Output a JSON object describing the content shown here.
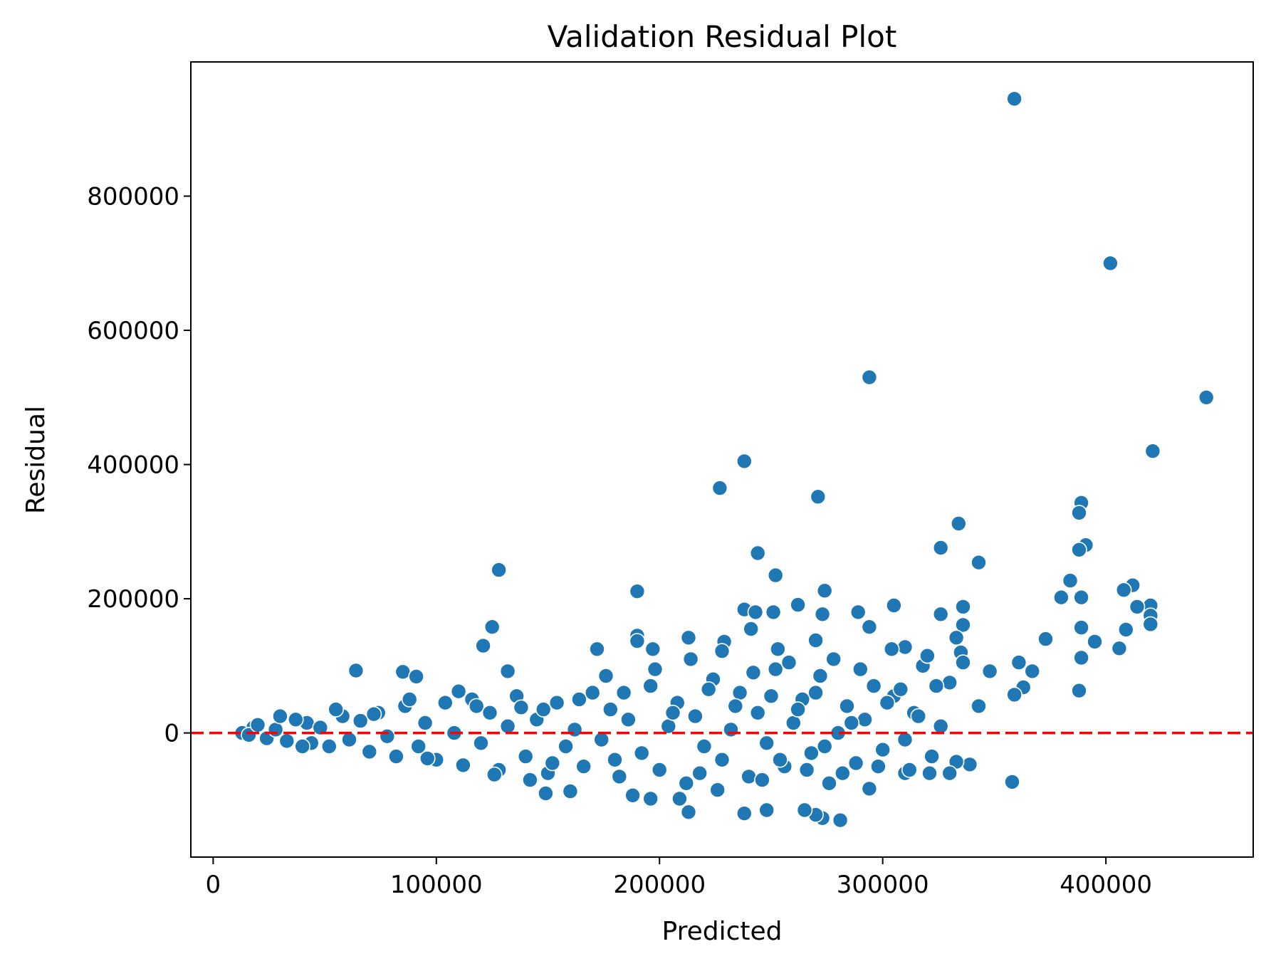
{
  "chart_data": {
    "type": "scatter",
    "title": "Validation Residual Plot",
    "xlabel": "Predicted",
    "ylabel": "Residual",
    "xlim": [
      -10000,
      466000
    ],
    "ylim": [
      -185000,
      1000000
    ],
    "xticks": [
      0,
      100000,
      200000,
      300000,
      400000
    ],
    "xtick_labels": [
      "0",
      "100000",
      "200000",
      "300000",
      "400000"
    ],
    "yticks": [
      0,
      200000,
      400000,
      600000,
      800000
    ],
    "ytick_labels": [
      "0",
      "200000",
      "400000",
      "600000",
      "800000"
    ],
    "grid": false,
    "reference_line": {
      "y": 0,
      "style": "dashed",
      "color": "#ff0000"
    },
    "point_color": "#1f77b4",
    "points": [
      [
        359000,
        945000
      ],
      [
        402000,
        700000
      ],
      [
        294000,
        530000
      ],
      [
        445000,
        500000
      ],
      [
        421000,
        420000
      ],
      [
        238000,
        405000
      ],
      [
        227000,
        365000
      ],
      [
        271000,
        352000
      ],
      [
        389000,
        343000
      ],
      [
        388000,
        328000
      ],
      [
        334000,
        312000
      ],
      [
        391000,
        280000
      ],
      [
        326000,
        276000
      ],
      [
        388000,
        273000
      ],
      [
        244000,
        268000
      ],
      [
        343000,
        254000
      ],
      [
        128000,
        243000
      ],
      [
        252000,
        235000
      ],
      [
        384000,
        227000
      ],
      [
        412000,
        220000
      ],
      [
        408000,
        213000
      ],
      [
        274000,
        212000
      ],
      [
        190000,
        211000
      ],
      [
        389000,
        202000
      ],
      [
        380000,
        202000
      ],
      [
        305000,
        190000
      ],
      [
        420000,
        190000
      ],
      [
        414000,
        188000
      ],
      [
        336000,
        188000
      ],
      [
        262000,
        191000
      ],
      [
        238000,
        184000
      ],
      [
        243000,
        180000
      ],
      [
        251000,
        180000
      ],
      [
        289000,
        180000
      ],
      [
        273000,
        177000
      ],
      [
        420000,
        175000
      ],
      [
        326000,
        177000
      ],
      [
        420000,
        162000
      ],
      [
        336000,
        161000
      ],
      [
        294000,
        158000
      ],
      [
        389000,
        157000
      ],
      [
        409000,
        154000
      ],
      [
        241000,
        155000
      ],
      [
        125000,
        158000
      ],
      [
        190000,
        145000
      ],
      [
        213000,
        142000
      ],
      [
        373000,
        140000
      ],
      [
        395000,
        136000
      ],
      [
        229000,
        136000
      ],
      [
        270000,
        138000
      ],
      [
        333000,
        142000
      ],
      [
        190000,
        137000
      ],
      [
        121000,
        130000
      ],
      [
        406000,
        126000
      ],
      [
        310000,
        128000
      ],
      [
        304000,
        125000
      ],
      [
        253000,
        125000
      ],
      [
        197000,
        125000
      ],
      [
        172000,
        125000
      ],
      [
        335000,
        120000
      ],
      [
        228000,
        122000
      ],
      [
        389000,
        112000
      ],
      [
        348000,
        92000
      ],
      [
        361000,
        105000
      ],
      [
        367000,
        92000
      ],
      [
        363000,
        68000
      ],
      [
        388000,
        63000
      ],
      [
        359000,
        57000
      ],
      [
        343000,
        40000
      ],
      [
        358000,
        -73000
      ],
      [
        339000,
        -47000
      ],
      [
        333000,
        -43000
      ],
      [
        330000,
        -60000
      ],
      [
        310000,
        -60000
      ],
      [
        321000,
        -60000
      ],
      [
        294000,
        -83000
      ],
      [
        281000,
        -130000
      ],
      [
        273000,
        -127000
      ],
      [
        270000,
        -122000
      ],
      [
        265000,
        -115000
      ],
      [
        248000,
        -115000
      ],
      [
        238000,
        -120000
      ],
      [
        213000,
        -118000
      ],
      [
        209000,
        -98000
      ],
      [
        196000,
        -98000
      ],
      [
        188000,
        -93000
      ],
      [
        149000,
        -90000
      ],
      [
        160000,
        -87000
      ],
      [
        132000,
        92000
      ],
      [
        64000,
        93000
      ],
      [
        85000,
        91000
      ],
      [
        91000,
        84000
      ],
      [
        42000,
        15000
      ],
      [
        18000,
        8000
      ],
      [
        13000,
        0
      ],
      [
        16000,
        -3000
      ],
      [
        20000,
        12000
      ],
      [
        24000,
        -8000
      ],
      [
        28000,
        5000
      ],
      [
        33000,
        -12000
      ],
      [
        37000,
        20000
      ],
      [
        44000,
        -15000
      ],
      [
        48000,
        8000
      ],
      [
        52000,
        -20000
      ],
      [
        58000,
        25000
      ],
      [
        61000,
        -10000
      ],
      [
        66000,
        18000
      ],
      [
        70000,
        -28000
      ],
      [
        74000,
        30000
      ],
      [
        78000,
        -5000
      ],
      [
        82000,
        -35000
      ],
      [
        86000,
        40000
      ],
      [
        92000,
        -20000
      ],
      [
        95000,
        15000
      ],
      [
        100000,
        -40000
      ],
      [
        104000,
        45000
      ],
      [
        108000,
        0
      ],
      [
        112000,
        -48000
      ],
      [
        116000,
        50000
      ],
      [
        120000,
        -15000
      ],
      [
        124000,
        30000
      ],
      [
        128000,
        -55000
      ],
      [
        132000,
        10000
      ],
      [
        136000,
        55000
      ],
      [
        140000,
        -35000
      ],
      [
        145000,
        20000
      ],
      [
        150000,
        -60000
      ],
      [
        154000,
        45000
      ],
      [
        158000,
        -20000
      ],
      [
        162000,
        5000
      ],
      [
        166000,
        -50000
      ],
      [
        170000,
        60000
      ],
      [
        174000,
        -10000
      ],
      [
        178000,
        35000
      ],
      [
        182000,
        -65000
      ],
      [
        186000,
        20000
      ],
      [
        192000,
        -30000
      ],
      [
        196000,
        70000
      ],
      [
        200000,
        -55000
      ],
      [
        204000,
        10000
      ],
      [
        208000,
        45000
      ],
      [
        212000,
        -75000
      ],
      [
        216000,
        25000
      ],
      [
        220000,
        -20000
      ],
      [
        224000,
        80000
      ],
      [
        228000,
        -40000
      ],
      [
        232000,
        5000
      ],
      [
        236000,
        60000
      ],
      [
        240000,
        -65000
      ],
      [
        244000,
        30000
      ],
      [
        248000,
        -15000
      ],
      [
        252000,
        95000
      ],
      [
        256000,
        -50000
      ],
      [
        260000,
        15000
      ],
      [
        264000,
        50000
      ],
      [
        268000,
        -30000
      ],
      [
        272000,
        85000
      ],
      [
        276000,
        -75000
      ],
      [
        280000,
        0
      ],
      [
        284000,
        40000
      ],
      [
        288000,
        -45000
      ],
      [
        292000,
        20000
      ],
      [
        296000,
        70000
      ],
      [
        300000,
        -25000
      ],
      [
        305000,
        55000
      ],
      [
        310000,
        -10000
      ],
      [
        314000,
        30000
      ],
      [
        318000,
        100000
      ],
      [
        322000,
        -35000
      ],
      [
        326000,
        10000
      ],
      [
        330000,
        75000
      ],
      [
        336000,
        105000
      ],
      [
        30000,
        25000
      ],
      [
        40000,
        -20000
      ],
      [
        55000,
        35000
      ],
      [
        72000,
        28000
      ],
      [
        88000,
        50000
      ],
      [
        96000,
        -38000
      ],
      [
        110000,
        62000
      ],
      [
        118000,
        40000
      ],
      [
        126000,
        -62000
      ],
      [
        138000,
        38000
      ],
      [
        142000,
        -70000
      ],
      [
        148000,
        35000
      ],
      [
        152000,
        -45000
      ],
      [
        164000,
        50000
      ],
      [
        176000,
        85000
      ],
      [
        180000,
        -40000
      ],
      [
        184000,
        60000
      ],
      [
        198000,
        95000
      ],
      [
        206000,
        30000
      ],
      [
        214000,
        110000
      ],
      [
        218000,
        -60000
      ],
      [
        222000,
        65000
      ],
      [
        226000,
        -85000
      ],
      [
        234000,
        40000
      ],
      [
        242000,
        90000
      ],
      [
        246000,
        -70000
      ],
      [
        250000,
        55000
      ],
      [
        254000,
        -40000
      ],
      [
        258000,
        105000
      ],
      [
        262000,
        35000
      ],
      [
        266000,
        -55000
      ],
      [
        270000,
        60000
      ],
      [
        274000,
        -20000
      ],
      [
        278000,
        110000
      ],
      [
        282000,
        -60000
      ],
      [
        286000,
        15000
      ],
      [
        290000,
        95000
      ],
      [
        298000,
        -50000
      ],
      [
        302000,
        45000
      ],
      [
        308000,
        65000
      ],
      [
        312000,
        -55000
      ],
      [
        316000,
        25000
      ],
      [
        320000,
        115000
      ],
      [
        324000,
        70000
      ]
    ]
  }
}
